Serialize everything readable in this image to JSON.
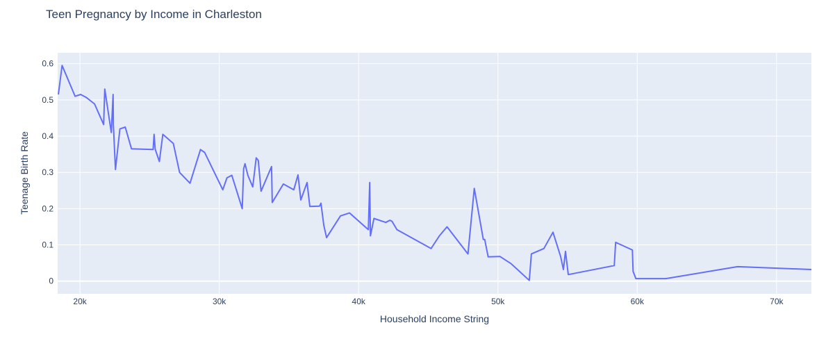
{
  "chart_data": {
    "type": "line",
    "title": "Teen Pregnancy by Income in Charleston",
    "xlabel": "Household Income String",
    "ylabel": "Teenage Birth Rate",
    "xlim": [
      18400,
      72500
    ],
    "ylim": [
      -0.035,
      0.63
    ],
    "x_ticks": [
      20000,
      30000,
      40000,
      50000,
      60000,
      70000
    ],
    "x_tick_labels": [
      "20k",
      "30k",
      "40k",
      "50k",
      "60k",
      "70k"
    ],
    "y_ticks": [
      0,
      0.1,
      0.2,
      0.3,
      0.4,
      0.5,
      0.6
    ],
    "y_tick_labels": [
      "0",
      "0.1",
      "0.2",
      "0.3",
      "0.4",
      "0.5",
      "0.6"
    ],
    "grid": true,
    "colors": {
      "plot_bg": "#e5ecf6",
      "grid": "#ffffff",
      "line": "#636efa",
      "text": "#2a3f5f"
    },
    "series": [
      {
        "x": [
          18450,
          18720,
          19650,
          20050,
          20450,
          21050,
          21700,
          21780,
          22250,
          22380,
          22400,
          22550,
          22870,
          23250,
          23700,
          25250,
          25320,
          25400,
          25700,
          25950,
          26700,
          27150,
          27900,
          28650,
          28950,
          30250,
          30550,
          30900,
          31650,
          31750,
          31850,
          32050,
          32400,
          32650,
          32800,
          33000,
          33750,
          33800,
          34600,
          35350,
          35650,
          35850,
          36300,
          36500,
          37200,
          37300,
          37500,
          37700,
          38700,
          39350,
          40700,
          40800,
          40850,
          41100,
          41950,
          42250,
          42400,
          42750,
          45200,
          45800,
          46350,
          47850,
          48300,
          48950,
          49050,
          49300,
          50150,
          50950,
          52250,
          52400,
          53300,
          53950,
          54500,
          54700,
          54850,
          55050,
          58350,
          58450,
          59650,
          59700,
          59900,
          62050,
          67200,
          72500
        ],
        "y": [
          0.515,
          0.595,
          0.51,
          0.515,
          0.507,
          0.489,
          0.432,
          0.53,
          0.41,
          0.515,
          0.431,
          0.308,
          0.42,
          0.425,
          0.365,
          0.363,
          0.405,
          0.364,
          0.33,
          0.405,
          0.38,
          0.3,
          0.27,
          0.363,
          0.355,
          0.252,
          0.285,
          0.292,
          0.2,
          0.31,
          0.324,
          0.292,
          0.26,
          0.34,
          0.333,
          0.248,
          0.316,
          0.217,
          0.268,
          0.252,
          0.293,
          0.224,
          0.272,
          0.206,
          0.207,
          0.215,
          0.154,
          0.12,
          0.18,
          0.188,
          0.142,
          0.272,
          0.125,
          0.173,
          0.162,
          0.168,
          0.165,
          0.142,
          0.09,
          0.125,
          0.15,
          0.075,
          0.256,
          0.115,
          0.115,
          0.067,
          0.068,
          0.048,
          0.002,
          0.075,
          0.09,
          0.135,
          0.068,
          0.032,
          0.082,
          0.018,
          0.043,
          0.107,
          0.086,
          0.027,
          0.007,
          0.007,
          0.04,
          0.032
        ]
      }
    ]
  }
}
